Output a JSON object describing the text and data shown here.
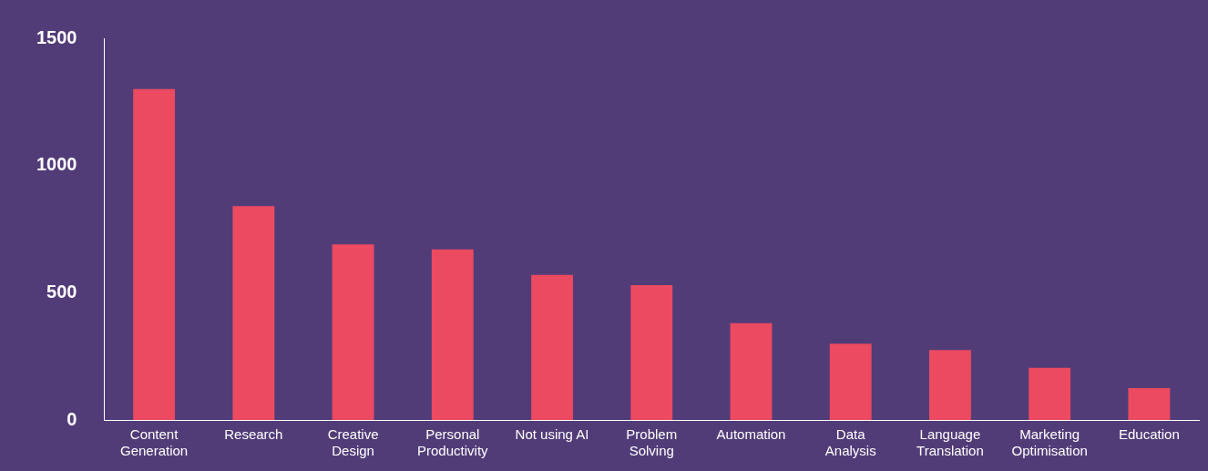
{
  "chart_data": {
    "type": "bar",
    "categories": [
      "Content Generation",
      "Research",
      "Creative Design",
      "Personal Productivity",
      "Not using AI",
      "Problem Solving",
      "Automation",
      "Data Analysis",
      "Language Translation",
      "Marketing Optimisation",
      "Education"
    ],
    "values": [
      1300,
      840,
      690,
      670,
      570,
      530,
      380,
      300,
      275,
      205,
      125
    ],
    "color": "#eb4a60",
    "ylim": [
      0,
      1500
    ],
    "yticks": [
      0,
      500,
      1000,
      1500
    ],
    "grid": false,
    "legend": false
  }
}
